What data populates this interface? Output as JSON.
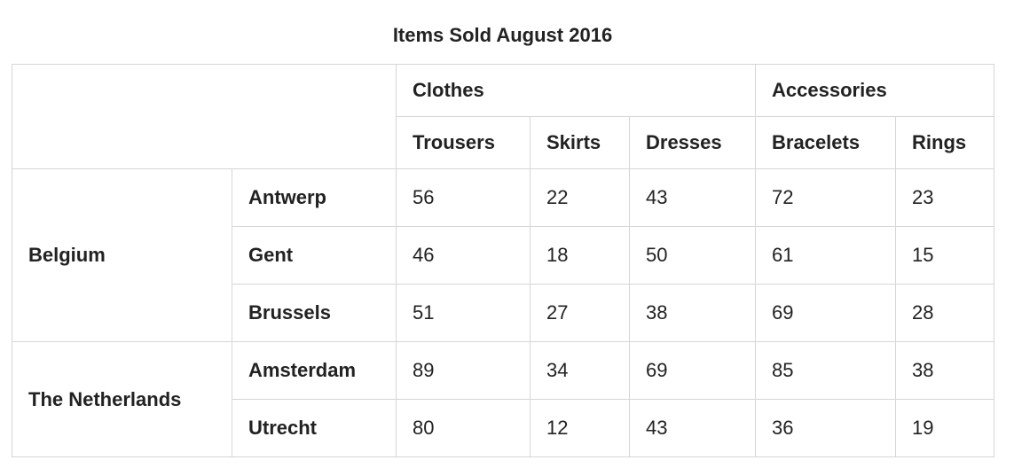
{
  "title": "Items Sold August 2016",
  "groups": {
    "clothes": "Clothes",
    "accessories": "Accessories"
  },
  "columns": [
    "Trousers",
    "Skirts",
    "Dresses",
    "Bracelets",
    "Rings"
  ],
  "countries": [
    {
      "name": "Belgium",
      "cities": [
        {
          "name": "Antwerp",
          "values": [
            "56",
            "22",
            "43",
            "72",
            "23"
          ]
        },
        {
          "name": "Gent",
          "values": [
            "46",
            "18",
            "50",
            "61",
            "15"
          ]
        },
        {
          "name": "Brussels",
          "values": [
            "51",
            "27",
            "38",
            "69",
            "28"
          ]
        }
      ]
    },
    {
      "name": "The Netherlands",
      "cities": [
        {
          "name": "Amsterdam",
          "values": [
            "89",
            "34",
            "69",
            "85",
            "38"
          ]
        },
        {
          "name": "Utrecht",
          "values": [
            "80",
            "12",
            "43",
            "36",
            "19"
          ]
        }
      ]
    }
  ]
}
